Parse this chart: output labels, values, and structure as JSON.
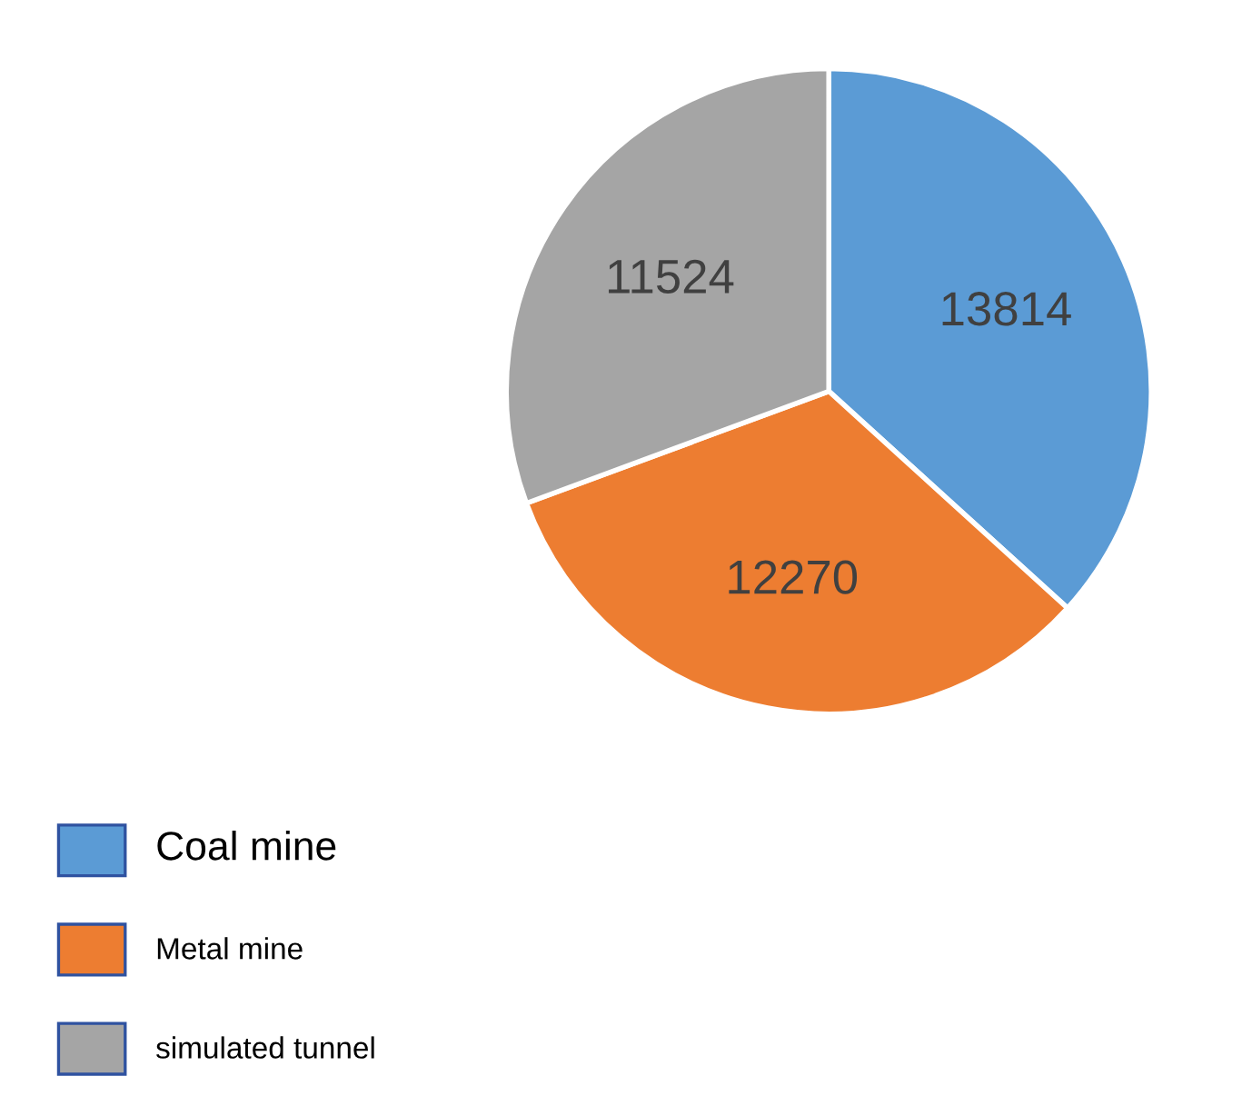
{
  "chart_data": {
    "type": "pie",
    "categories": [
      "Coal mine",
      "Metal mine",
      "simulated tunnel"
    ],
    "values": [
      13814,
      12270,
      11524
    ],
    "colors": [
      "#5b9bd5",
      "#ed7d31",
      "#a5a5a5"
    ],
    "data_labels": true,
    "legend": "bottom left"
  }
}
